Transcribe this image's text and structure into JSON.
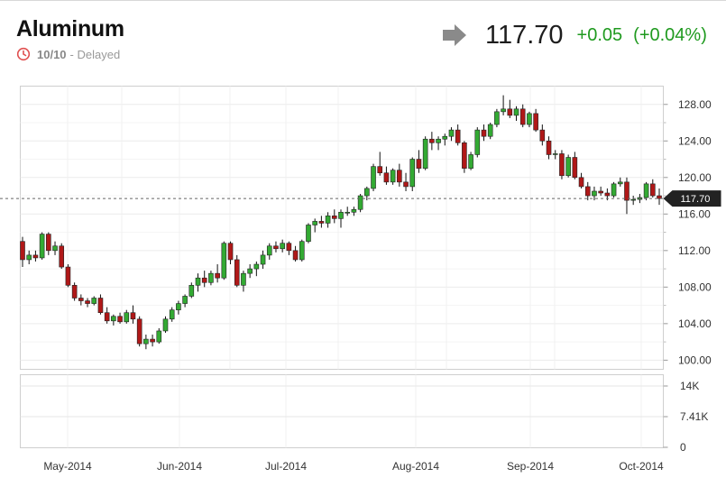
{
  "header": {
    "title": "Aluminum",
    "date": "10/10",
    "status": "- Delayed",
    "price": "117.70",
    "change": "+0.05",
    "change_pct": "(+0.04%)",
    "up_color": "#1f9a1f",
    "icons": {
      "status": "clock-icon",
      "direction": "right-arrow-icon"
    }
  },
  "chart_data": {
    "type": "candlestick",
    "title": "",
    "xlabel": "",
    "ylabel": "",
    "ylim": [
      99,
      130
    ],
    "yticks": [
      "128.00",
      "124.00",
      "120.00",
      "116.00",
      "112.00",
      "108.00",
      "104.00",
      "100.00"
    ],
    "xticks": [
      "May-2014",
      "Jun-2014",
      "Jul-2014",
      "Aug-2014",
      "Sep-2014",
      "Oct-2014"
    ],
    "last_value": "117.70",
    "last_label": "117.70",
    "colors": {
      "up": "#33aa33",
      "down": "#b01818"
    },
    "candles_ohlc": [
      [
        113.0,
        113.5,
        110.2,
        111.0
      ],
      [
        111.0,
        112.0,
        110.5,
        111.5
      ],
      [
        111.5,
        112.0,
        110.8,
        111.2
      ],
      [
        111.2,
        114.0,
        111.0,
        113.8
      ],
      [
        113.8,
        114.0,
        111.5,
        112.0
      ],
      [
        112.0,
        113.0,
        111.5,
        112.5
      ],
      [
        112.5,
        112.8,
        110.0,
        110.2
      ],
      [
        110.2,
        110.5,
        108.0,
        108.2
      ],
      [
        108.2,
        108.5,
        106.5,
        106.8
      ],
      [
        106.8,
        107.2,
        106.0,
        106.5
      ],
      [
        106.5,
        106.8,
        105.8,
        106.2
      ],
      [
        106.2,
        107.0,
        106.0,
        106.8
      ],
      [
        106.8,
        107.2,
        105.0,
        105.2
      ],
      [
        105.2,
        105.8,
        104.0,
        104.3
      ],
      [
        104.3,
        105.0,
        103.8,
        104.8
      ],
      [
        104.8,
        105.2,
        104.0,
        104.2
      ],
      [
        104.2,
        105.5,
        104.0,
        105.2
      ],
      [
        105.2,
        106.0,
        104.0,
        104.5
      ],
      [
        104.5,
        104.8,
        101.5,
        101.8
      ],
      [
        101.8,
        102.8,
        101.2,
        102.3
      ],
      [
        102.3,
        102.8,
        101.5,
        102.0
      ],
      [
        102.0,
        103.5,
        101.8,
        103.2
      ],
      [
        103.2,
        104.8,
        103.0,
        104.5
      ],
      [
        104.5,
        105.8,
        104.2,
        105.5
      ],
      [
        105.5,
        106.5,
        105.0,
        106.2
      ],
      [
        106.2,
        107.2,
        105.8,
        107.0
      ],
      [
        107.0,
        108.5,
        106.8,
        108.2
      ],
      [
        108.2,
        109.5,
        107.5,
        109.0
      ],
      [
        109.0,
        109.8,
        108.0,
        108.5
      ],
      [
        108.5,
        109.8,
        108.2,
        109.5
      ],
      [
        109.5,
        110.5,
        108.5,
        109.0
      ],
      [
        109.0,
        113.0,
        108.8,
        112.8
      ],
      [
        112.8,
        113.0,
        110.5,
        111.0
      ],
      [
        111.0,
        111.5,
        108.0,
        108.2
      ],
      [
        108.2,
        109.8,
        107.5,
        109.5
      ],
      [
        109.5,
        110.5,
        109.0,
        110.0
      ],
      [
        110.0,
        110.8,
        109.2,
        110.5
      ],
      [
        110.5,
        112.0,
        110.0,
        111.5
      ],
      [
        111.5,
        112.8,
        111.0,
        112.5
      ],
      [
        112.5,
        113.0,
        111.8,
        112.2
      ],
      [
        112.2,
        113.2,
        111.8,
        112.8
      ],
      [
        112.8,
        113.0,
        111.5,
        112.0
      ],
      [
        112.0,
        112.5,
        110.8,
        111.0
      ],
      [
        111.0,
        113.2,
        110.8,
        113.0
      ],
      [
        113.0,
        115.0,
        112.8,
        114.8
      ],
      [
        114.8,
        115.5,
        114.0,
        115.2
      ],
      [
        115.2,
        115.8,
        114.5,
        115.0
      ],
      [
        115.0,
        116.2,
        114.5,
        115.8
      ],
      [
        115.8,
        116.5,
        115.0,
        115.5
      ],
      [
        115.5,
        116.5,
        114.5,
        116.2
      ],
      [
        116.2,
        116.8,
        115.8,
        116.2
      ],
      [
        116.2,
        116.8,
        115.8,
        116.5
      ],
      [
        116.5,
        118.2,
        116.2,
        118.0
      ],
      [
        118.0,
        119.0,
        117.5,
        118.8
      ],
      [
        118.8,
        121.5,
        118.5,
        121.2
      ],
      [
        121.2,
        122.8,
        120.2,
        120.5
      ],
      [
        120.5,
        121.2,
        119.2,
        119.5
      ],
      [
        119.5,
        121.0,
        119.2,
        120.8
      ],
      [
        120.8,
        121.5,
        119.0,
        119.5
      ],
      [
        119.5,
        120.5,
        118.5,
        119.0
      ],
      [
        119.0,
        122.2,
        118.5,
        122.0
      ],
      [
        122.0,
        123.0,
        120.5,
        121.0
      ],
      [
        121.0,
        124.5,
        120.8,
        124.2
      ],
      [
        124.2,
        125.0,
        123.0,
        123.8
      ],
      [
        123.8,
        124.5,
        123.0,
        124.2
      ],
      [
        124.2,
        124.8,
        123.5,
        124.5
      ],
      [
        124.5,
        125.5,
        124.0,
        125.2
      ],
      [
        125.2,
        125.8,
        123.5,
        123.8
      ],
      [
        123.8,
        124.0,
        120.5,
        121.0
      ],
      [
        121.0,
        122.8,
        120.8,
        122.5
      ],
      [
        122.5,
        125.5,
        122.2,
        125.2
      ],
      [
        125.2,
        125.8,
        124.0,
        124.5
      ],
      [
        124.5,
        126.0,
        124.2,
        125.8
      ],
      [
        125.8,
        127.5,
        125.5,
        127.2
      ],
      [
        127.2,
        129.0,
        126.8,
        127.5
      ],
      [
        127.5,
        128.5,
        126.5,
        126.8
      ],
      [
        126.8,
        127.8,
        126.2,
        127.5
      ],
      [
        127.5,
        128.0,
        125.5,
        125.8
      ],
      [
        125.8,
        127.2,
        125.5,
        127.0
      ],
      [
        127.0,
        127.5,
        125.0,
        125.2
      ],
      [
        125.2,
        125.8,
        123.5,
        124.0
      ],
      [
        124.0,
        124.5,
        122.0,
        122.5
      ],
      [
        122.5,
        123.0,
        122.0,
        122.6
      ],
      [
        122.6,
        123.0,
        119.8,
        120.2
      ],
      [
        120.2,
        122.5,
        120.0,
        122.2
      ],
      [
        122.2,
        122.8,
        119.8,
        120.0
      ],
      [
        120.0,
        120.5,
        118.8,
        119.0
      ],
      [
        119.0,
        119.5,
        117.5,
        118.0
      ],
      [
        118.0,
        119.0,
        117.5,
        118.5
      ],
      [
        118.5,
        119.0,
        118.0,
        118.3
      ],
      [
        118.3,
        118.8,
        117.5,
        118.0
      ],
      [
        118.0,
        119.5,
        117.8,
        119.3
      ],
      [
        119.3,
        120.0,
        119.0,
        119.5
      ],
      [
        119.5,
        120.0,
        116.0,
        117.5
      ],
      [
        117.5,
        118.0,
        117.0,
        117.6
      ],
      [
        117.6,
        118.2,
        117.2,
        117.8
      ],
      [
        117.8,
        119.5,
        117.5,
        119.3
      ],
      [
        119.3,
        119.8,
        117.8,
        118.0
      ],
      [
        118.0,
        118.8,
        117.0,
        117.7
      ]
    ],
    "volume_ticks": [
      "14K",
      "7.41K",
      "0"
    ]
  }
}
